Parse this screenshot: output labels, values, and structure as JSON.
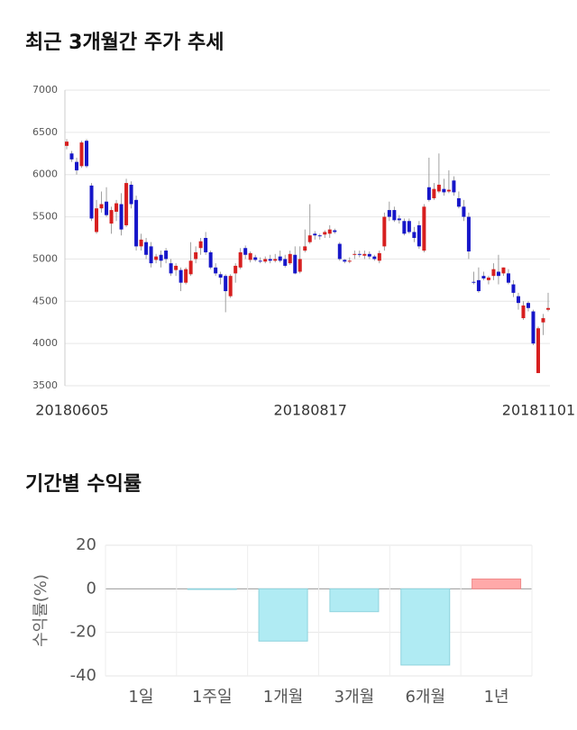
{
  "chart_data": [
    {
      "type": "candlestick",
      "title": "최근 3개월간 주가 추세",
      "categories": [
        "20180605",
        null,
        null,
        null,
        null,
        null,
        null,
        null,
        null,
        null,
        null,
        null,
        null,
        null,
        null,
        null,
        null,
        null,
        null,
        null,
        null,
        null,
        null,
        null,
        null,
        null,
        null,
        null,
        null,
        null,
        null,
        null,
        null,
        null,
        null,
        null,
        null,
        null,
        null,
        null,
        null,
        null,
        null,
        null,
        null,
        null,
        null,
        null,
        "20180817",
        null,
        null,
        null,
        null,
        null,
        null,
        null,
        null,
        null,
        null,
        null,
        null,
        null,
        null,
        null,
        null,
        null,
        null,
        null,
        null,
        null,
        null,
        null,
        null,
        null,
        null,
        null,
        null,
        null,
        null,
        null,
        null,
        null,
        null,
        null,
        null,
        null,
        null,
        null,
        null,
        null,
        null,
        null,
        null,
        null,
        "20181101",
        null,
        null,
        null
      ],
      "open": [
        6340,
        6250,
        6150,
        6100,
        6400,
        5870,
        5320,
        5600,
        5680,
        5420,
        5560,
        5650,
        5400,
        5880,
        5700,
        5150,
        5200,
        5150,
        4990,
        5050,
        5100,
        4950,
        4870,
        4870,
        4720,
        4820,
        5000,
        5130,
        5250,
        5080,
        4900,
        4820,
        4800,
        4560,
        4830,
        4900,
        5130,
        4990,
        5020,
        4980,
        4970,
        5000,
        4980,
        5030,
        5000,
        4950,
        5050,
        4850,
        5100,
        5200,
        5300,
        5280,
        5290,
        5300,
        5340,
        5180,
        4990,
        4970,
        5050,
        5060,
        5040,
        5060,
        5030,
        4980,
        5150,
        5580,
        5580,
        5480,
        5450,
        5450,
        5320,
        5400,
        5100,
        5850,
        5720,
        5800,
        5830,
        5800,
        5930,
        5720,
        5620,
        5500,
        4730,
        4750,
        4800,
        4750,
        4800,
        4850,
        4830,
        4830,
        4700,
        4560,
        4300,
        4480,
        4380,
        3650,
        4250,
        4400
      ],
      "high": [
        6420,
        6280,
        6200,
        6400,
        6420,
        5900,
        5700,
        5800,
        5850,
        5620,
        5700,
        5780,
        5950,
        5920,
        5750,
        5300,
        5250,
        5200,
        5060,
        5100,
        5130,
        5000,
        4950,
        4900,
        4900,
        5200,
        5150,
        5250,
        5320,
        5100,
        4950,
        4850,
        4820,
        4820,
        4950,
        5130,
        5160,
        5090,
        5050,
        5020,
        5030,
        5050,
        5060,
        5100,
        5050,
        5100,
        5150,
        5150,
        5350,
        5650,
        5330,
        5300,
        5340,
        5400,
        5360,
        5200,
        5000,
        5020,
        5100,
        5100,
        5100,
        5090,
        5050,
        5100,
        5550,
        5680,
        5620,
        5520,
        5480,
        5480,
        5380,
        5450,
        5650,
        6200,
        5900,
        6250,
        5950,
        6050,
        5980,
        5800,
        5700,
        5550,
        4850,
        4900,
        4850,
        4800,
        4950,
        5050,
        4900,
        4880,
        4750,
        4600,
        4500,
        4500,
        4400,
        4200,
        4350,
        4600
      ],
      "low": [
        6300,
        6150,
        6000,
        6080,
        6080,
        5450,
        5300,
        5550,
        5500,
        5300,
        5450,
        5280,
        5380,
        5600,
        5100,
        5100,
        5000,
        4900,
        4950,
        4900,
        4950,
        4800,
        4800,
        4620,
        4700,
        4800,
        4950,
        5050,
        5050,
        4880,
        4800,
        4700,
        4370,
        4540,
        4720,
        4880,
        5000,
        4960,
        4970,
        4950,
        4950,
        4950,
        4960,
        4960,
        4900,
        4930,
        4820,
        4830,
        5080,
        5180,
        5230,
        5230,
        5250,
        5250,
        5300,
        4980,
        4950,
        4950,
        5000,
        5020,
        5000,
        5000,
        4980,
        4950,
        5100,
        5450,
        5440,
        5420,
        5280,
        5300,
        5200,
        5120,
        5080,
        5680,
        5700,
        5780,
        5750,
        5780,
        5750,
        5600,
        5450,
        5000,
        4700,
        4600,
        4750,
        4700,
        4750,
        4700,
        4800,
        4700,
        4550,
        4400,
        4280,
        4380,
        3980,
        3650,
        4100,
        4380
      ],
      "close": [
        6390,
        6180,
        6050,
        6380,
        6100,
        5480,
        5600,
        5650,
        5520,
        5580,
        5660,
        5350,
        5900,
        5650,
        5150,
        5230,
        5050,
        4950,
        5030,
        4980,
        5000,
        4830,
        4920,
        4720,
        4880,
        4980,
        5080,
        5210,
        5080,
        4900,
        4830,
        4780,
        4620,
        4800,
        4920,
        5080,
        5050,
        5070,
        4990,
        4970,
        5000,
        4980,
        5000,
        4980,
        4920,
        5060,
        4830,
        5000,
        5150,
        5280,
        5280,
        5270,
        5320,
        5350,
        5320,
        5000,
        4970,
        4980,
        5060,
        5050,
        5060,
        5030,
        5000,
        5070,
        5500,
        5500,
        5460,
        5460,
        5300,
        5320,
        5250,
        5150,
        5620,
        5700,
        5830,
        5880,
        5790,
        5820,
        5790,
        5620,
        5500,
        5090,
        4720,
        4620,
        4770,
        4780,
        4880,
        4800,
        4900,
        4720,
        4600,
        4480,
        4450,
        4420,
        4000,
        4180,
        4300,
        4420
      ],
      "up_color": "#d71f1f",
      "down_color": "#1616c9",
      "ylim": [
        3500,
        7000
      ],
      "yticks": [
        3500,
        4000,
        4500,
        5000,
        5500,
        6000,
        6500,
        7000
      ],
      "grid": true
    },
    {
      "type": "bar",
      "title": "기간별 수익률",
      "ylabel": "수익률(%)",
      "categories": [
        "1일",
        "1주일",
        "1개월",
        "3개월",
        "6개월",
        "1년"
      ],
      "values": [
        0,
        -0.3,
        -24,
        -10.5,
        -35,
        4.5
      ],
      "positive_color": "#ffa9a9",
      "negative_color": "#b0ebf3",
      "ylim": [
        -40,
        20
      ],
      "yticks": [
        -40,
        -20,
        0,
        20
      ],
      "grid": true
    }
  ]
}
